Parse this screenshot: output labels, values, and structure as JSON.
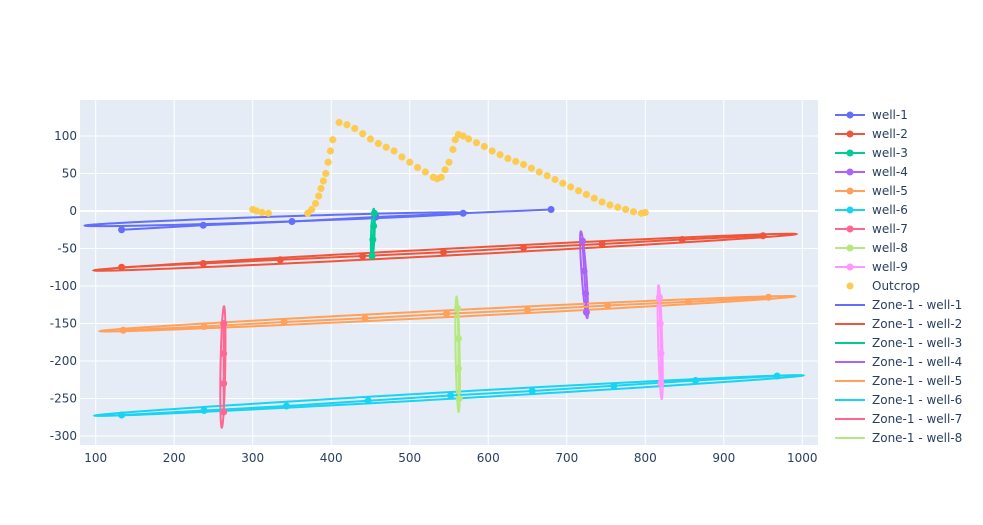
{
  "chart_data": {
    "type": "scatter",
    "xlim": [
      80,
      1020
    ],
    "ylim": [
      -312,
      148
    ],
    "xticks": [
      100,
      200,
      300,
      400,
      500,
      600,
      700,
      800,
      900,
      1000
    ],
    "yticks": [
      100,
      50,
      0,
      -50,
      -100,
      -150,
      -200,
      -250,
      -300
    ],
    "grid": true,
    "legend_position": "right",
    "colors": {
      "well-1": "#636efa",
      "well-2": "#ef553b",
      "well-3": "#00cc96",
      "well-4": "#ab63fa",
      "well-5": "#ffa15a",
      "well-6": "#19d3f3",
      "well-7": "#ff6692",
      "well-8": "#b6e880",
      "well-9": "#ff97ff",
      "outcrop": "#fecb52",
      "plot_bg": "#e5ecf6",
      "grid": "#ffffff",
      "text": "#2a3f5f"
    },
    "well_series": [
      {
        "name": "well-1",
        "x": [
          133,
          237,
          350,
          457,
          568,
          680
        ],
        "y": [
          -25,
          -19,
          -14,
          -8,
          -3,
          2
        ]
      },
      {
        "name": "well-2",
        "x": [
          133,
          237,
          335,
          440,
          543,
          645,
          745,
          847,
          950
        ],
        "y": [
          -75,
          -70,
          -65,
          -60,
          -55,
          -49,
          -44,
          -38,
          -33
        ]
      },
      {
        "name": "well-3",
        "x": [
          452,
          453,
          454,
          455
        ],
        "y": [
          -60,
          -38,
          -20,
          -3
        ]
      },
      {
        "name": "well-4",
        "x": [
          720,
          722,
          724,
          725
        ],
        "y": [
          -40,
          -80,
          -110,
          -135
        ]
      },
      {
        "name": "well-5",
        "x": [
          135,
          238,
          340,
          443,
          547,
          650,
          752,
          855,
          957
        ],
        "y": [
          -159,
          -154,
          -148,
          -143,
          -137,
          -132,
          -126,
          -121,
          -115
        ]
      },
      {
        "name": "well-6",
        "x": [
          133,
          238,
          343,
          447,
          552,
          656,
          760,
          864,
          968
        ],
        "y": [
          -272,
          -266,
          -260,
          -253,
          -246,
          -240,
          -233,
          -226,
          -220
        ]
      },
      {
        "name": "well-7",
        "x": [
          263,
          263,
          263,
          263
        ],
        "y": [
          -150,
          -190,
          -230,
          -268
        ]
      },
      {
        "name": "well-8",
        "x": [
          561,
          562,
          562,
          563
        ],
        "y": [
          -130,
          -170,
          -210,
          -250
        ]
      },
      {
        "name": "well-9",
        "x": [
          818,
          819,
          820,
          820
        ],
        "y": [
          -115,
          -150,
          -190,
          -230
        ]
      }
    ],
    "outcrop": {
      "name": "Outcrop",
      "x": [
        300,
        305,
        312,
        320,
        370,
        375,
        380,
        384,
        387,
        390,
        393,
        396,
        399,
        402,
        410,
        420,
        430,
        440,
        450,
        460,
        470,
        480,
        490,
        500,
        510,
        520,
        530,
        535,
        540,
        545,
        550,
        555,
        558,
        562,
        568,
        575,
        585,
        595,
        605,
        615,
        625,
        635,
        645,
        655,
        665,
        675,
        685,
        695,
        705,
        715,
        725,
        735,
        745,
        755,
        765,
        775,
        785,
        795,
        800
      ],
      "y": [
        2,
        0,
        -2,
        -3,
        -3,
        2,
        10,
        20,
        30,
        40,
        50,
        65,
        80,
        95,
        118,
        115,
        110,
        103,
        96,
        90,
        85,
        80,
        72,
        65,
        58,
        52,
        45,
        43,
        45,
        55,
        65,
        82,
        95,
        102,
        100,
        96,
        91,
        86,
        80,
        75,
        70,
        66,
        62,
        57,
        52,
        47,
        42,
        37,
        32,
        27,
        22,
        17,
        12,
        8,
        5,
        2,
        -1,
        -3,
        -2
      ]
    },
    "zone_ellipses": [
      {
        "name": "Zone-1 - well-1",
        "center": [
          330,
          -11
        ],
        "semi_major": 244,
        "semi_minor": 3.5,
        "tilt_deg": 2.0
      },
      {
        "name": "Zone-1 - well-2",
        "center": [
          545,
          -55
        ],
        "semi_major": 448,
        "semi_minor": 4.5,
        "tilt_deg": 3.1
      },
      {
        "name": "Zone-1 - well-3",
        "center": [
          453,
          -30
        ],
        "semi_major": 33,
        "semi_minor": 2.2,
        "tilt_deg": 88.0
      },
      {
        "name": "Zone-1 - well-4",
        "center": [
          722,
          -85
        ],
        "semi_major": 58,
        "semi_minor": 3.0,
        "tilt_deg": -86.0
      },
      {
        "name": "Zone-1 - well-5",
        "center": [
          548,
          -137
        ],
        "semi_major": 443,
        "semi_minor": 4.5,
        "tilt_deg": 3.0
      },
      {
        "name": "Zone-1 - well-6",
        "center": [
          550,
          -246
        ],
        "semi_major": 452,
        "semi_minor": 4.5,
        "tilt_deg": 3.4
      },
      {
        "name": "Zone-1 - well-7",
        "center": [
          262,
          -208
        ],
        "semi_major": 81,
        "semi_minor": 3.0,
        "tilt_deg": 89.0
      },
      {
        "name": "Zone-1 - well-8",
        "center": [
          561,
          -191
        ],
        "semi_major": 77,
        "semi_minor": 2.6,
        "tilt_deg": -89.0
      },
      {
        "name": "Zone-1 - well-9",
        "center": [
          819,
          -175
        ],
        "semi_major": 76,
        "semi_minor": 2.6,
        "tilt_deg": -88.5
      }
    ],
    "legend": [
      {
        "label": "well-1",
        "kind": "line-marker",
        "color": "#636efa"
      },
      {
        "label": "well-2",
        "kind": "line-marker",
        "color": "#ef553b"
      },
      {
        "label": "well-3",
        "kind": "line-marker",
        "color": "#00cc96"
      },
      {
        "label": "well-4",
        "kind": "line-marker",
        "color": "#ab63fa"
      },
      {
        "label": "well-5",
        "kind": "line-marker",
        "color": "#ffa15a"
      },
      {
        "label": "well-6",
        "kind": "line-marker",
        "color": "#19d3f3"
      },
      {
        "label": "well-7",
        "kind": "line-marker",
        "color": "#ff6692"
      },
      {
        "label": "well-8",
        "kind": "line-marker",
        "color": "#b6e880"
      },
      {
        "label": "well-9",
        "kind": "line-marker",
        "color": "#ff97ff"
      },
      {
        "label": "Outcrop",
        "kind": "marker",
        "color": "#fecb52"
      },
      {
        "label": "Zone-1 - well-1",
        "kind": "line",
        "color": "#636efa"
      },
      {
        "label": "Zone-1 - well-2",
        "kind": "line",
        "color": "#ef553b"
      },
      {
        "label": "Zone-1 - well-3",
        "kind": "line",
        "color": "#00cc96"
      },
      {
        "label": "Zone-1 - well-4",
        "kind": "line",
        "color": "#ab63fa"
      },
      {
        "label": "Zone-1 - well-5",
        "kind": "line",
        "color": "#ffa15a"
      },
      {
        "label": "Zone-1 - well-6",
        "kind": "line",
        "color": "#19d3f3"
      },
      {
        "label": "Zone-1 - well-7",
        "kind": "line",
        "color": "#ff6692"
      },
      {
        "label": "Zone-1 - well-8",
        "kind": "line",
        "color": "#b6e880"
      }
    ]
  }
}
